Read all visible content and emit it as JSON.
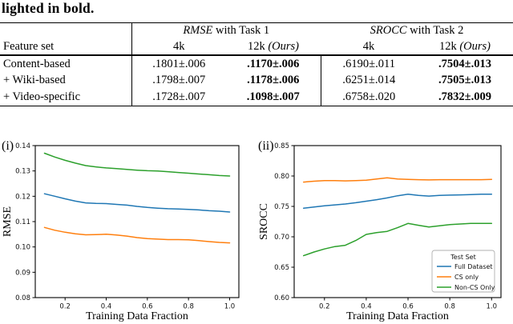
{
  "caption": "lighted in bold.",
  "table": {
    "feature_header": "Feature set",
    "groups": [
      {
        "math": "RMSE",
        "rest": " with Task 1"
      },
      {
        "math": "SROCC",
        "rest": " with Task 2"
      }
    ],
    "subheaders": [
      {
        "label": "4k",
        "suffix": ""
      },
      {
        "label": "12k ",
        "suffix": "(Ours)"
      },
      {
        "label": "4k",
        "suffix": ""
      },
      {
        "label": "12k ",
        "suffix": "(Ours)"
      }
    ],
    "rows": [
      {
        "feature": "Content-based",
        "values": [
          ".1801±.006",
          ".1170±.006",
          ".6190±.011",
          ".7504±.013"
        ]
      },
      {
        "feature": "+ Wiki-based",
        "values": [
          ".1798±.007",
          ".1178±.006",
          ".6251±.014",
          ".7505±.013"
        ]
      },
      {
        "feature": "+ Video-specific",
        "values": [
          ".1728±.007",
          ".1098±.007",
          ".6758±.020",
          ".7832±.009"
        ]
      }
    ]
  },
  "chart_data": [
    {
      "type": "line",
      "panel_label": "(i)",
      "xlabel": "Training Data Fraction",
      "ylabel": "RMSE",
      "xlim": [
        0.055,
        1.045
      ],
      "ylim": [
        0.08,
        0.14
      ],
      "xtick_values": [
        0.2,
        0.4,
        0.6,
        0.8,
        1.0
      ],
      "xtick_labels": [
        "0.2",
        "0.4",
        "0.6",
        "0.8",
        "1.0"
      ],
      "ytick_values": [
        0.08,
        0.09,
        0.1,
        0.11,
        0.12,
        0.13,
        0.14
      ],
      "ytick_labels": [
        "0.08",
        "0.09",
        "0.10",
        "0.11",
        "0.12",
        "0.13",
        "0.14"
      ],
      "grid": false,
      "legend": null,
      "x": [
        0.1,
        0.15,
        0.2,
        0.25,
        0.3,
        0.35,
        0.4,
        0.45,
        0.5,
        0.55,
        0.6,
        0.65,
        0.7,
        0.75,
        0.8,
        0.85,
        0.9,
        0.95,
        1.0
      ],
      "series": [
        {
          "name": "Full Dataset",
          "color": "#1f77b4",
          "values": [
            0.121,
            0.12,
            0.119,
            0.1181,
            0.1174,
            0.1172,
            0.1171,
            0.1168,
            0.1165,
            0.116,
            0.1156,
            0.1153,
            0.1151,
            0.115,
            0.1148,
            0.1146,
            0.1143,
            0.1141,
            0.1138
          ]
        },
        {
          "name": "CS only",
          "color": "#ff7f0e",
          "values": [
            0.1077,
            0.1066,
            0.1058,
            0.1052,
            0.1048,
            0.1049,
            0.105,
            0.1047,
            0.1043,
            0.1037,
            0.1033,
            0.1031,
            0.1029,
            0.1029,
            0.1028,
            0.1025,
            0.1021,
            0.1018,
            0.1016
          ]
        },
        {
          "name": "Non-CS Only",
          "color": "#2ca02c",
          "values": [
            0.137,
            0.1355,
            0.1342,
            0.1331,
            0.1321,
            0.1316,
            0.1312,
            0.1309,
            0.1306,
            0.1303,
            0.1301,
            0.13,
            0.1297,
            0.1294,
            0.1291,
            0.1288,
            0.1285,
            0.1282,
            0.128
          ]
        }
      ]
    },
    {
      "type": "line",
      "panel_label": "(ii)",
      "xlabel": "Training Data Fraction",
      "ylabel": "SROCC",
      "xlim": [
        0.055,
        1.045
      ],
      "ylim": [
        0.6,
        0.85
      ],
      "xtick_values": [
        0.2,
        0.4,
        0.6,
        0.8,
        1.0
      ],
      "xtick_labels": [
        "0.2",
        "0.4",
        "0.6",
        "0.8",
        "1.0"
      ],
      "ytick_values": [
        0.6,
        0.65,
        0.7,
        0.75,
        0.8,
        0.85
      ],
      "ytick_labels": [
        "0.60",
        "0.65",
        "0.70",
        "0.75",
        "0.80",
        "0.85"
      ],
      "grid": false,
      "legend": {
        "title": "Test Set",
        "position": "lower right"
      },
      "x": [
        0.1,
        0.15,
        0.2,
        0.25,
        0.3,
        0.35,
        0.4,
        0.45,
        0.5,
        0.55,
        0.6,
        0.65,
        0.7,
        0.75,
        0.8,
        0.85,
        0.9,
        0.95,
        1.0
      ],
      "series": [
        {
          "name": "Full Dataset",
          "color": "#1f77b4",
          "values": [
            0.747,
            0.749,
            0.751,
            0.7525,
            0.754,
            0.756,
            0.7585,
            0.761,
            0.764,
            0.7675,
            0.77,
            0.768,
            0.767,
            0.768,
            0.7685,
            0.769,
            0.7695,
            0.77,
            0.77
          ]
        },
        {
          "name": "CS only",
          "color": "#ff7f0e",
          "values": [
            0.79,
            0.7915,
            0.7925,
            0.7925,
            0.792,
            0.7925,
            0.793,
            0.795,
            0.797,
            0.795,
            0.7945,
            0.794,
            0.7935,
            0.794,
            0.794,
            0.794,
            0.794,
            0.794,
            0.7945
          ]
        },
        {
          "name": "Non-CS Only",
          "color": "#2ca02c",
          "values": [
            0.669,
            0.675,
            0.68,
            0.684,
            0.686,
            0.694,
            0.704,
            0.707,
            0.709,
            0.715,
            0.722,
            0.719,
            0.716,
            0.718,
            0.72,
            0.721,
            0.722,
            0.722,
            0.722
          ]
        }
      ]
    }
  ]
}
